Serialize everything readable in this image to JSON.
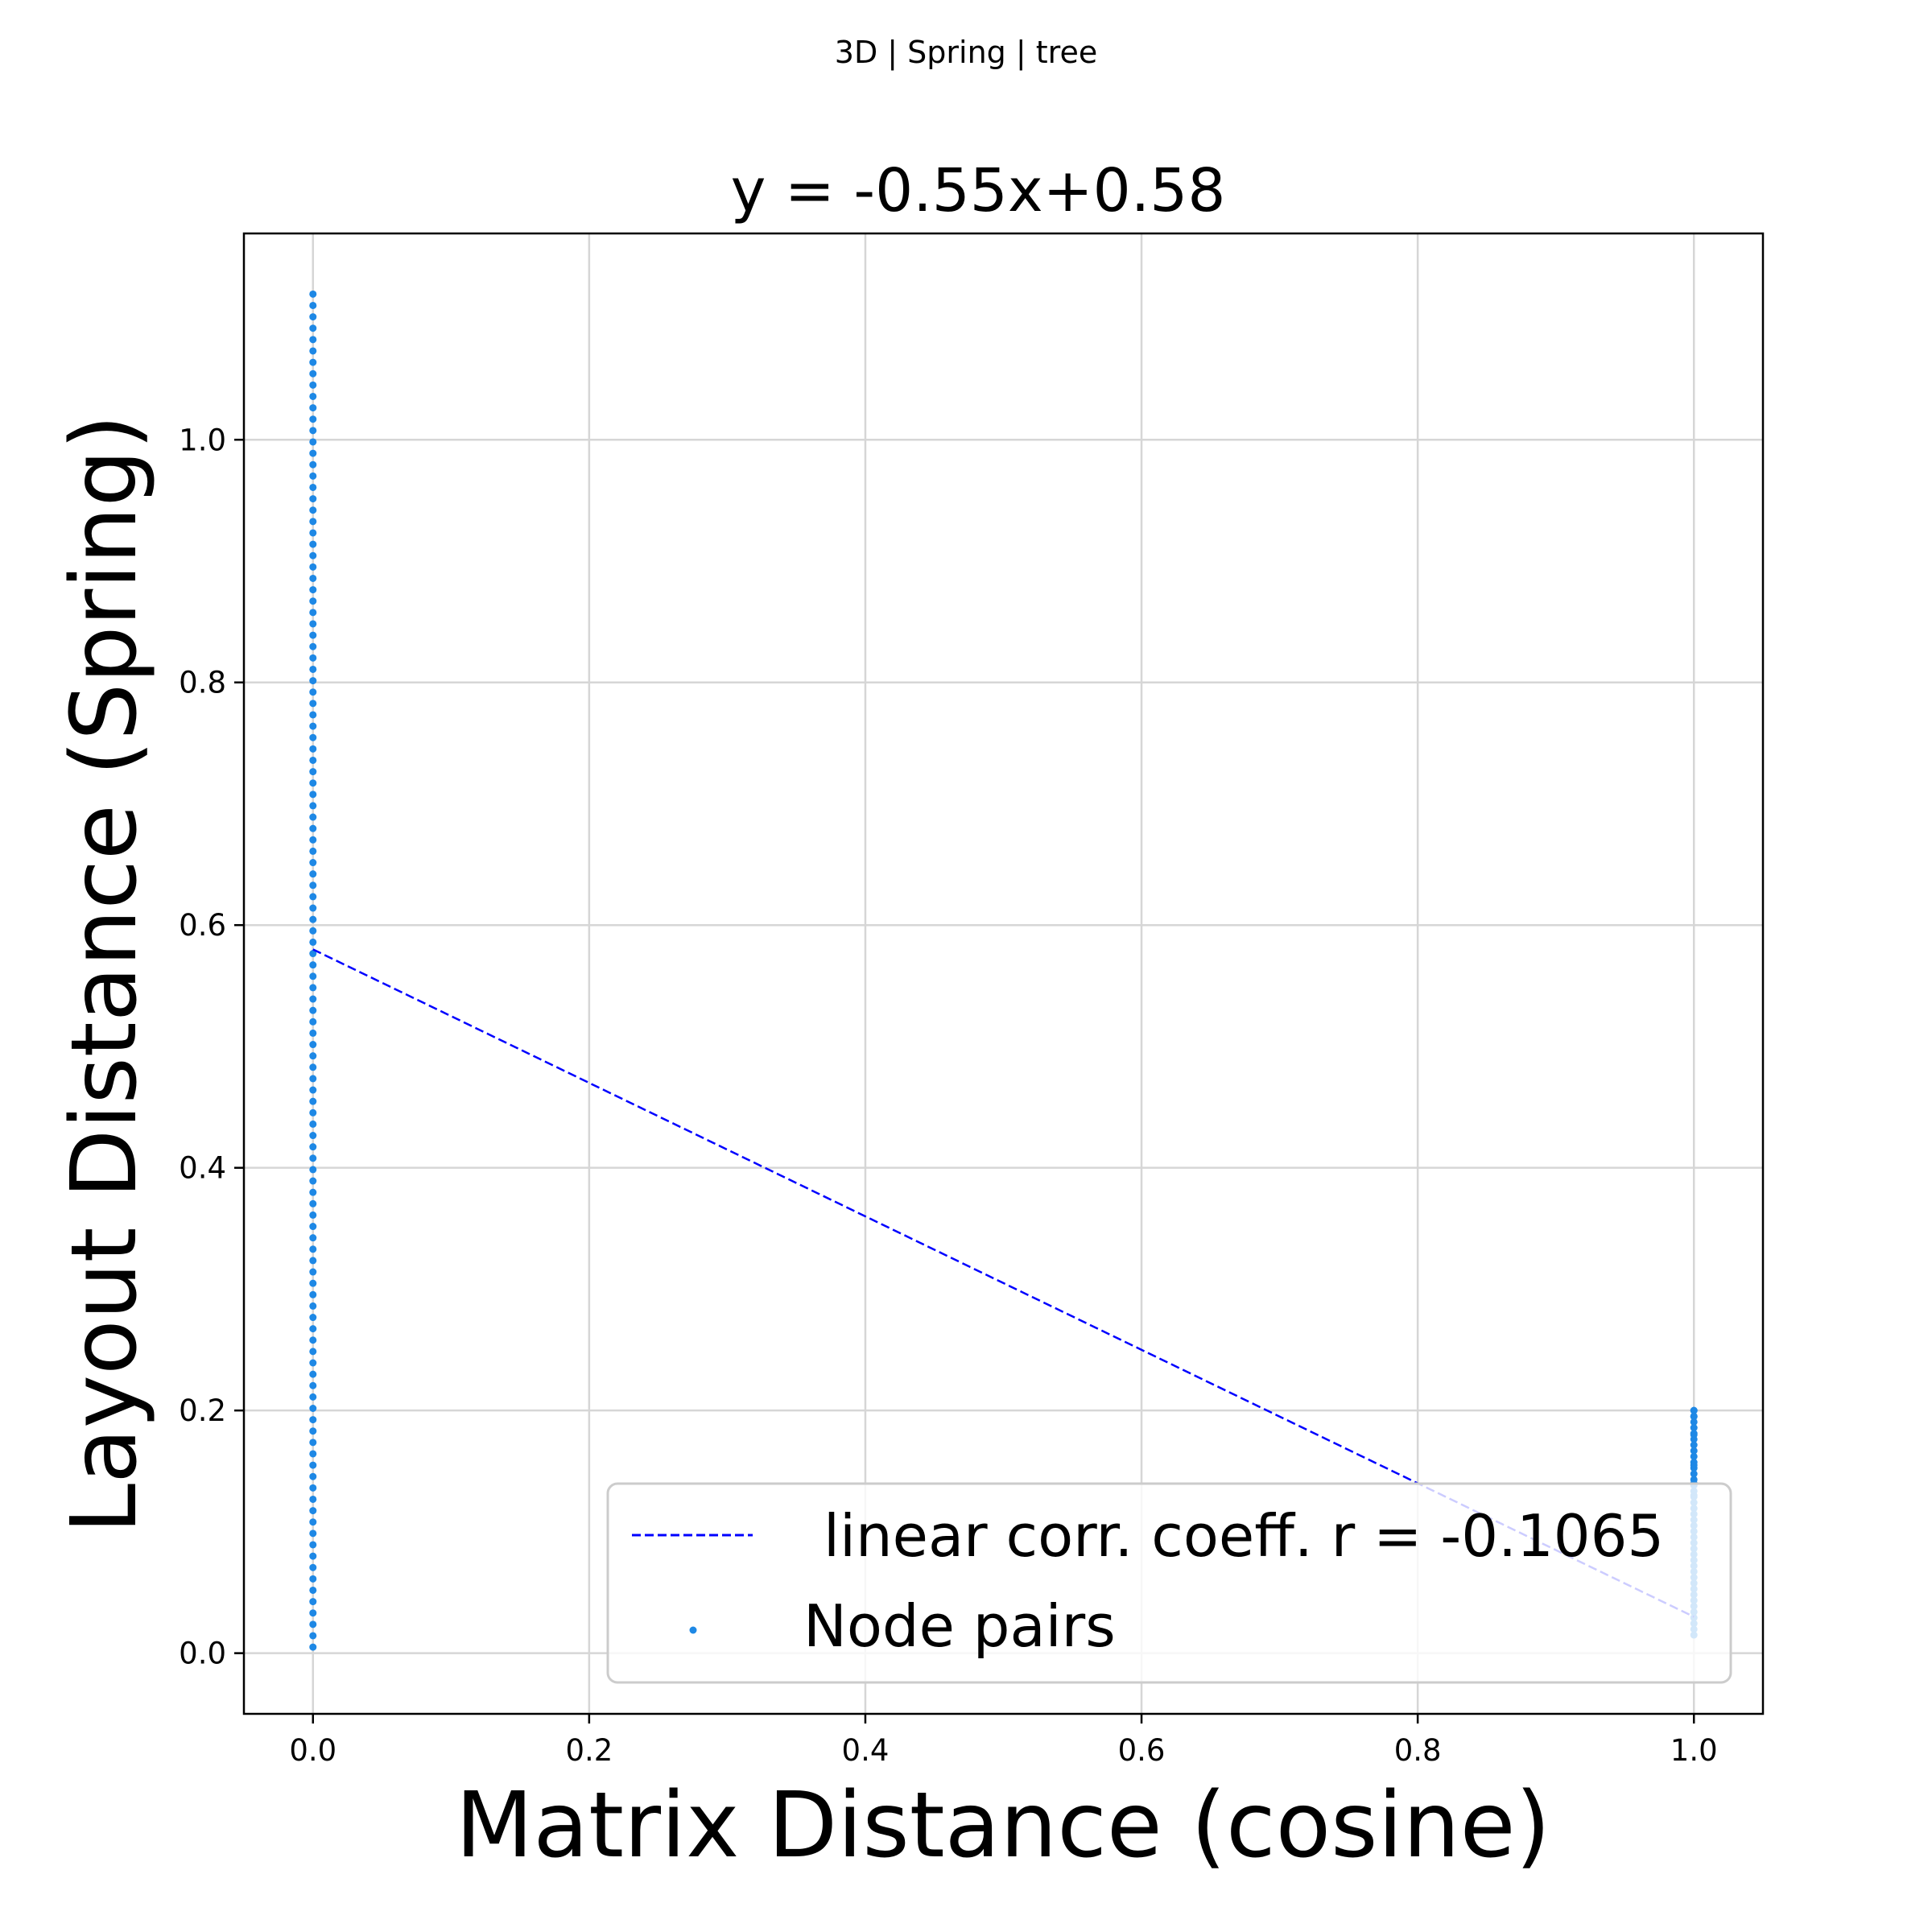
{
  "chart_data": {
    "type": "scatter",
    "suptitle": "3D | Spring | tree",
    "title": "y = -0.55x+0.58",
    "xlabel": "Matrix Distance (cosine)",
    "ylabel": "Layout Distance (Spring)",
    "xlim": [
      -0.05,
      1.05
    ],
    "ylim": [
      -0.05,
      1.17
    ],
    "xticks": [
      0.0,
      0.2,
      0.4,
      0.6,
      0.8,
      1.0
    ],
    "xtick_labels": [
      "0.0",
      "0.2",
      "0.4",
      "0.6",
      "0.8",
      "1.0"
    ],
    "yticks": [
      0.0,
      0.2,
      0.4,
      0.6,
      0.8,
      1.0
    ],
    "ytick_labels": [
      "0.0",
      "0.2",
      "0.4",
      "0.6",
      "0.8",
      "1.0"
    ],
    "grid": true,
    "legend_position": "lower-right",
    "series": [
      {
        "name": "Node pairs",
        "kind": "scatter",
        "color": "#1e88e5",
        "groups": [
          {
            "x": 0.0,
            "y_min": 0.005,
            "y_max": 1.12,
            "note_count": 120
          },
          {
            "x": 1.0,
            "y_min": 0.015,
            "y_max": 0.2,
            "note_count": 40
          }
        ],
        "highlight_points": [
          {
            "x": 1.0,
            "y": 0.2
          },
          {
            "x": 1.0,
            "y": 0.195
          },
          {
            "x": 1.0,
            "y": 0.18
          },
          {
            "x": 1.0,
            "y": 0.155
          },
          {
            "x": 1.0,
            "y": 0.14
          },
          {
            "x": 1.0,
            "y": 0.13
          }
        ]
      },
      {
        "name": "linear corr. coeff. r = -0.1065",
        "kind": "line",
        "style": "dashed",
        "color": "#0000ff",
        "slope": -0.55,
        "intercept": 0.58,
        "x_range": [
          0.0,
          1.0
        ]
      }
    ]
  }
}
